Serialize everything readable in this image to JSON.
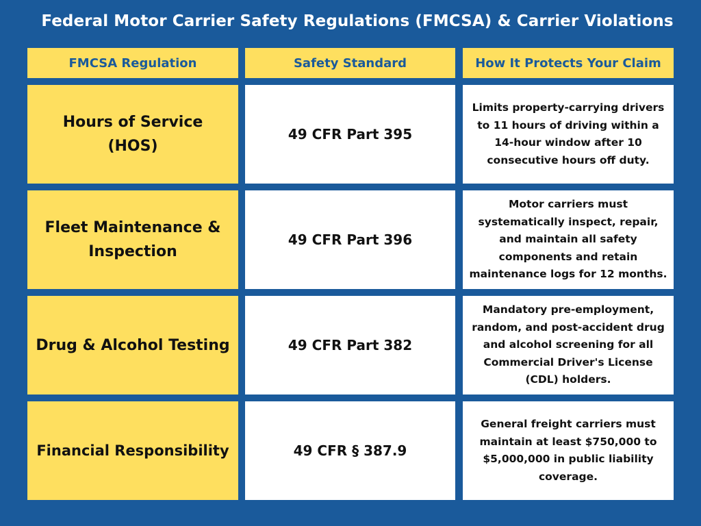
{
  "title": "Federal Motor Carrier Safety Regulations (FMCSA) & Carrier Violations",
  "table": {
    "headers": [
      "FMCSA Regulation",
      "Safety Standard",
      "How It Protects Your Claim"
    ],
    "rows": [
      {
        "regulation": "Hours of Service (HOS)",
        "standard": "49 CFR Part 395",
        "protection": "Limits property-carrying drivers to 11 hours of driving within a 14-hour window after 10 consecutive hours off duty."
      },
      {
        "regulation": "Fleet Maintenance & Inspection",
        "standard": "49 CFR Part 396",
        "protection": "Motor carriers must systematically inspect, repair, and maintain all safety components and retain maintenance logs for 12 months."
      },
      {
        "regulation": "Drug & Alcohol Testing",
        "standard": "49 CFR Part 382",
        "protection": "Mandatory pre-employment, random, and post-accident drug and alcohol screening for all Commercial Driver's License (CDL) holders."
      },
      {
        "regulation": "Financial Responsibility",
        "standard": "49 CFR § 387.9",
        "protection": "General freight carriers must maintain at least $750,000 to $5,000,000 in public liability coverage."
      }
    ]
  },
  "colors": {
    "background": "#1a5a9b",
    "header_fill": "#fedf5f",
    "regulation_fill": "#fedf5f",
    "cell_fill": "#ffffff"
  }
}
